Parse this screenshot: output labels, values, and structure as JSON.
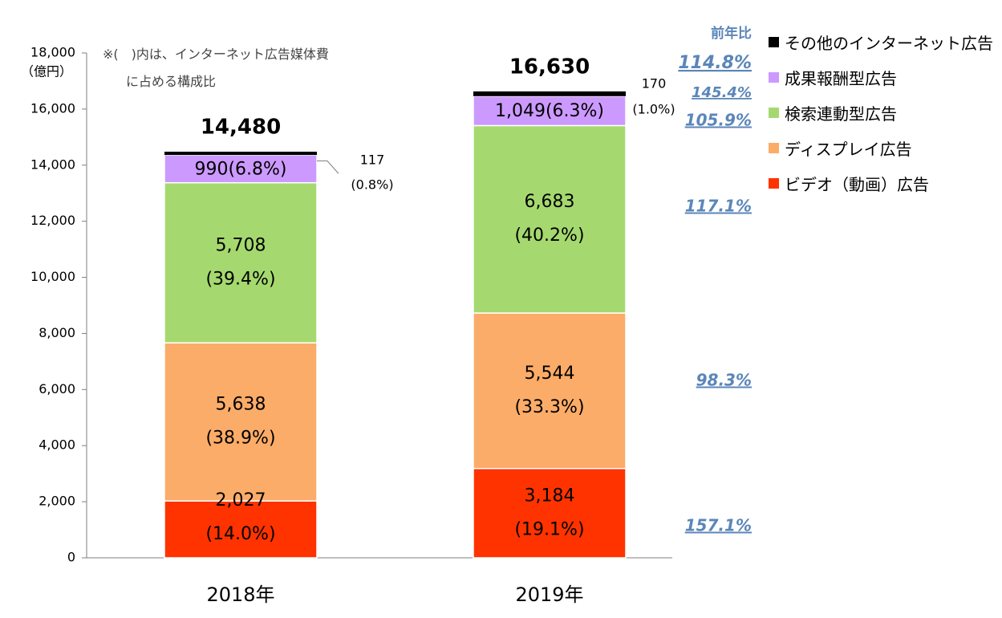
{
  "chart_data": {
    "type": "bar",
    "stacked": true,
    "categories": [
      "2018年",
      "2019年"
    ],
    "y_unit_label": "（億円）",
    "ylim": [
      0,
      18000
    ],
    "yticks": [
      "0",
      "2,000",
      "4,000",
      "6,000",
      "8,000",
      "10,000",
      "12,000",
      "14,000",
      "16,000",
      "18,000"
    ],
    "note_line1": "※(　)内は、インターネット広告媒体費",
    "note_line2": "に占める構成比",
    "yoy_header": "前年比",
    "series": [
      {
        "name": "ビデオ（動画）広告",
        "color": "#ff3300",
        "values": [
          2027,
          3184
        ],
        "value_labels": [
          "2,027",
          "3,184"
        ],
        "share_labels": [
          "(14.0%)",
          "(19.1%)"
        ],
        "yoy": "157.1%"
      },
      {
        "name": "ディスプレイ広告",
        "color": "#fbac68",
        "values": [
          5638,
          5544
        ],
        "value_labels": [
          "5,638",
          "5,544"
        ],
        "share_labels": [
          "(38.9%)",
          "(33.3%)"
        ],
        "yoy": "98.3%"
      },
      {
        "name": "検索連動型広告",
        "color": "#a5d96f",
        "values": [
          5708,
          6683
        ],
        "value_labels": [
          "5,708",
          "6,683"
        ],
        "share_labels": [
          "(39.4%)",
          "(40.2%)"
        ],
        "yoy": "117.1%"
      },
      {
        "name": "成果報酬型広告",
        "color": "#cc99ff",
        "values": [
          990,
          1049
        ],
        "combined_labels": [
          "990(6.8%)",
          "1,049(6.3%)"
        ],
        "yoy": "105.9%"
      },
      {
        "name": "その他のインターネット広告",
        "color": "#000000",
        "values": [
          117,
          170
        ],
        "value_labels": [
          "117",
          "170"
        ],
        "share_labels": [
          "(0.8%)",
          "(1.0%)"
        ],
        "yoy": "145.4%"
      }
    ],
    "totals": [
      "14,480",
      "16,630"
    ],
    "total_yoy": "114.8%",
    "colors": {
      "yoy_text": "#5b86b9",
      "axis": "#7f7f7f"
    },
    "grid": false,
    "legend_position": "right"
  }
}
